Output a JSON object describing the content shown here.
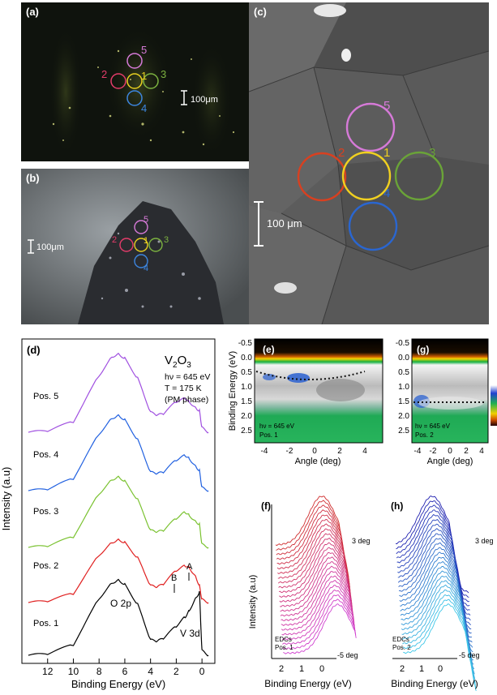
{
  "panels": {
    "a": {
      "label": "(a)",
      "scale": "100μm",
      "markers": [
        {
          "n": "5",
          "color": "#d67ad8"
        },
        {
          "n": "2",
          "color": "#e33c6a"
        },
        {
          "n": "1",
          "color": "#e8d020"
        },
        {
          "n": "3",
          "color": "#7cb240"
        },
        {
          "n": "4",
          "color": "#3d86e0"
        }
      ]
    },
    "b": {
      "label": "(b)",
      "scale": "100μm"
    },
    "c": {
      "label": "(c)",
      "scale": "100 μm",
      "markers": [
        {
          "n": "5",
          "color": "#d67ad8"
        },
        {
          "n": "2",
          "color": "#d84020"
        },
        {
          "n": "1",
          "color": "#f0d020"
        },
        {
          "n": "3",
          "color": "#6aa338"
        },
        {
          "n": "4",
          "color": "#2a66d0"
        }
      ]
    },
    "d": {
      "label": "(d)",
      "compound": "V2O3",
      "compound_main": "V",
      "compound_sub1": "2",
      "compound_o": "O",
      "compound_sub2": "3",
      "energy": "hν = 645 eV",
      "temperature": "T = 175 K",
      "phase": "(PM phase)",
      "ylabel": "Intensity (a.u)",
      "xlabel": "Binding Energy (eV)",
      "xticks": [
        "12",
        "10",
        "8",
        "6",
        "4",
        "2",
        "0"
      ],
      "peak_labels": {
        "o2p": "O 2p",
        "v3d": "V 3d",
        "A": "A",
        "B": "B"
      },
      "series_labels": [
        "Pos. 5",
        "Pos. 4",
        "Pos. 3",
        "Pos. 2",
        "Pos. 1"
      ]
    },
    "e": {
      "label": "(e)",
      "info1": "hν = 645 eV",
      "info2": "Pos. 1"
    },
    "g": {
      "label": "(g)",
      "info1": "hν = 645 eV",
      "info2": "Pos. 2"
    },
    "eg": {
      "ylabel": "Binding Energy (eV)",
      "xlabel": "Angle (deg)",
      "yticks": [
        "-0.5",
        "0.0",
        "0.5",
        "1.0",
        "1.5",
        "2.0",
        "2.5"
      ],
      "xticks": [
        "-4",
        "-2",
        "0",
        "2",
        "4"
      ]
    },
    "f": {
      "label": "(f)",
      "top": "3 deg",
      "bottom": "-5 deg",
      "edc": "EDCs",
      "pos": "Pos. 1",
      "ylabel": "Intensity (a.u)",
      "xlabel": "Binding Energy (eV)",
      "xticks": [
        "2",
        "1",
        "0"
      ]
    },
    "h": {
      "label": "(h)",
      "top": "3 deg",
      "bottom": "-5 deg",
      "edc": "EDCs",
      "pos": "Pos. 2",
      "xlabel": "Binding Energy (eV)",
      "xticks": [
        "2",
        "1",
        "0"
      ]
    }
  },
  "chart_data": [
    {
      "type": "line",
      "panel": "d",
      "xlabel": "Binding Energy (eV)",
      "ylabel": "Intensity (a.u)",
      "xlim": [
        14,
        -1
      ],
      "x": [
        13.5,
        12,
        10,
        8,
        7,
        6.5,
        6,
        5,
        4,
        3.5,
        3,
        2,
        1.3,
        1,
        0.5,
        0.2,
        0,
        -0.5
      ],
      "series": [
        {
          "name": "Pos. 1",
          "color": "#000000",
          "values": [
            0.05,
            0.1,
            0.4,
            1.9,
            2.4,
            2.5,
            2.35,
            1.7,
            0.55,
            0.5,
            0.6,
            1.0,
            1.3,
            1.5,
            1.9,
            2.1,
            0.2,
            0.05
          ]
        },
        {
          "name": "Pos. 2",
          "color": "#e02020",
          "values": [
            0.05,
            0.1,
            0.35,
            1.6,
            2.0,
            2.1,
            2.0,
            1.5,
            0.6,
            0.55,
            0.65,
            1.1,
            1.25,
            1.2,
            0.9,
            0.6,
            0.15,
            0.05
          ]
        },
        {
          "name": "Pos. 3",
          "color": "#7ac230",
          "values": [
            0.05,
            0.1,
            0.4,
            1.8,
            2.25,
            2.35,
            2.2,
            1.6,
            0.6,
            0.55,
            0.6,
            1.0,
            1.2,
            1.1,
            0.9,
            0.8,
            0.15,
            0.05
          ]
        },
        {
          "name": "Pos. 4",
          "color": "#2060e0",
          "values": [
            0.05,
            0.1,
            0.45,
            1.9,
            2.4,
            2.5,
            2.35,
            1.7,
            0.65,
            0.6,
            0.65,
            1.05,
            1.2,
            1.1,
            0.85,
            0.7,
            0.15,
            0.05
          ]
        },
        {
          "name": "Pos. 5",
          "color": "#a050e0",
          "values": [
            0.05,
            0.1,
            0.4,
            1.9,
            2.5,
            2.6,
            2.45,
            1.8,
            0.7,
            0.6,
            0.65,
            1.05,
            1.15,
            1.05,
            0.85,
            0.75,
            0.2,
            0.05
          ]
        }
      ]
    }
  ]
}
